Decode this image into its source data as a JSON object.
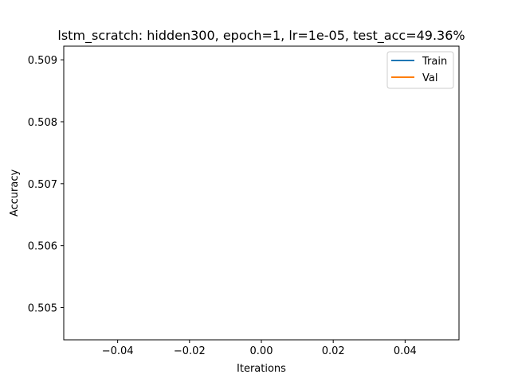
{
  "chart_data": {
    "type": "line",
    "title": "lstm_scratch: hidden300, epoch=1, lr=1e-05, test_acc=49.36%",
    "xlabel": "Iterations",
    "ylabel": "Accuracy",
    "xlim": [
      -0.055,
      0.055
    ],
    "ylim": [
      0.50448,
      0.50922
    ],
    "xticks": [
      -0.04,
      -0.02,
      0.0,
      0.02,
      0.04
    ],
    "xtick_labels": [
      "−0.04",
      "−0.02",
      "0.00",
      "0.02",
      "0.04"
    ],
    "yticks": [
      0.505,
      0.506,
      0.507,
      0.508,
      0.509
    ],
    "ytick_labels": [
      "0.505",
      "0.506",
      "0.507",
      "0.508",
      "0.509"
    ],
    "grid": false,
    "legend_position": "upper right",
    "series": [
      {
        "name": "Train",
        "color": "#1f77b4",
        "x": [],
        "y": []
      },
      {
        "name": "Val",
        "color": "#ff7f0e",
        "x": [],
        "y": []
      }
    ]
  }
}
